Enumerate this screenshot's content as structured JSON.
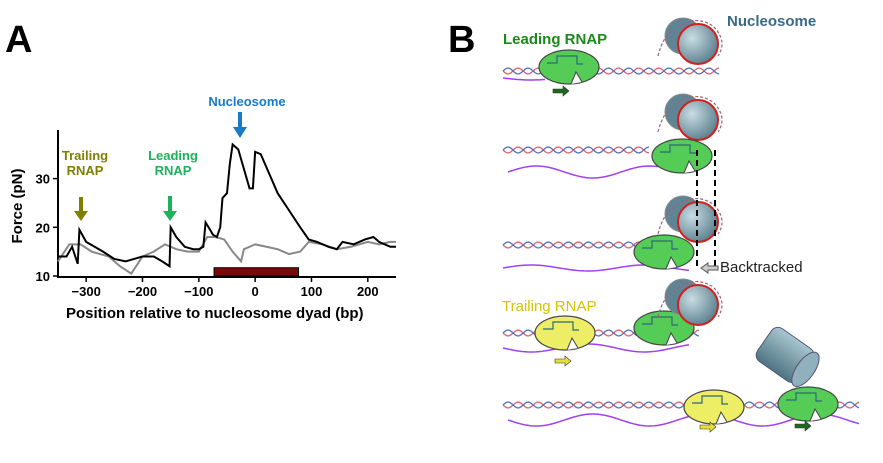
{
  "panel_a": {
    "label": "A",
    "annotations": {
      "trailing": {
        "line1": "Trailing",
        "line2": "RNAP",
        "x": -310,
        "color": "#808000"
      },
      "leading": {
        "line1": "Leading",
        "line2": "RNAP",
        "x": -150,
        "color": "#19b35a"
      },
      "nucleosome": {
        "text": "Nucleosome",
        "x": -25,
        "color": "#1a7ac8"
      }
    }
  },
  "chart_data": {
    "type": "line",
    "xlabel": "Position relative to nucleosome dyad (bp)",
    "ylabel": "Force (pN)",
    "xlim": [
      -350,
      250
    ],
    "ylim": [
      10,
      39
    ],
    "xticks": [
      -300,
      -200,
      -100,
      0,
      100,
      200
    ],
    "xtick_labels": [
      "−300",
      "−200",
      "−100",
      "0",
      "100",
      "200"
    ],
    "yticks": [
      10,
      20,
      30
    ],
    "ytick_labels": [
      "10",
      "20",
      "30"
    ],
    "nucleosome_region": {
      "start": -73,
      "end": 77,
      "color": "#7a0a0a"
    },
    "series": [
      {
        "name": "trace-gray",
        "color": "#888888",
        "x": [
          -350,
          -330,
          -310,
          -290,
          -260,
          -240,
          -220,
          -200,
          -180,
          -160,
          -140,
          -120,
          -100,
          -85,
          -70,
          -55,
          -40,
          -25,
          -20,
          0,
          20,
          40,
          60,
          80,
          95,
          120,
          145,
          170,
          200,
          220,
          240,
          250
        ],
        "y": [
          13,
          16.5,
          16.5,
          15,
          14,
          12,
          10.5,
          14,
          15,
          16.5,
          15.5,
          15,
          15,
          18,
          18,
          17.5,
          15,
          13,
          15.5,
          16.5,
          16,
          15.5,
          14.5,
          15,
          17,
          16.5,
          15.5,
          16,
          17,
          16.5,
          17,
          17
        ]
      },
      {
        "name": "trace-black",
        "color": "#000000",
        "x": [
          -350,
          -335,
          -325,
          -315,
          -312,
          -300,
          -270,
          -250,
          -230,
          -215,
          -200,
          -180,
          -165,
          -152,
          -150,
          -140,
          -125,
          -110,
          -100,
          -92,
          -88,
          -80,
          -75,
          -68,
          -62,
          -58,
          -50,
          -45,
          -40,
          -30,
          -20,
          -10,
          -4,
          0,
          10,
          25,
          40,
          60,
          80,
          95,
          110,
          130,
          145,
          155,
          175,
          195,
          210,
          220,
          240,
          250
        ],
        "y": [
          14,
          14,
          16,
          12.5,
          19.5,
          17,
          15,
          13.5,
          13,
          13.5,
          14,
          14,
          13,
          12,
          20,
          18,
          16,
          15.5,
          15.5,
          16,
          21,
          19.5,
          18.5,
          18,
          20,
          26,
          27,
          33,
          37,
          36,
          32,
          28,
          28,
          35.5,
          35,
          31,
          27,
          23.5,
          20,
          17.5,
          17,
          16,
          15.5,
          17,
          16.5,
          17.5,
          18,
          17,
          16,
          16
        ]
      }
    ]
  },
  "panel_b": {
    "label": "B",
    "leading_rnap": "Leading RNAP",
    "nucleosome": "Nucleosome",
    "backtracked": "Backtracked",
    "trailing_rnap": "Trailing RNAP",
    "colors": {
      "leading": "#55cc55",
      "trailing": "#eeee66",
      "nucleosome": "#6f97a6",
      "rna": "#a040f0",
      "leading_text": "#1a8a1a",
      "trailing_text": "#d4c400",
      "nucleosome_text": "#3a6a88"
    }
  }
}
